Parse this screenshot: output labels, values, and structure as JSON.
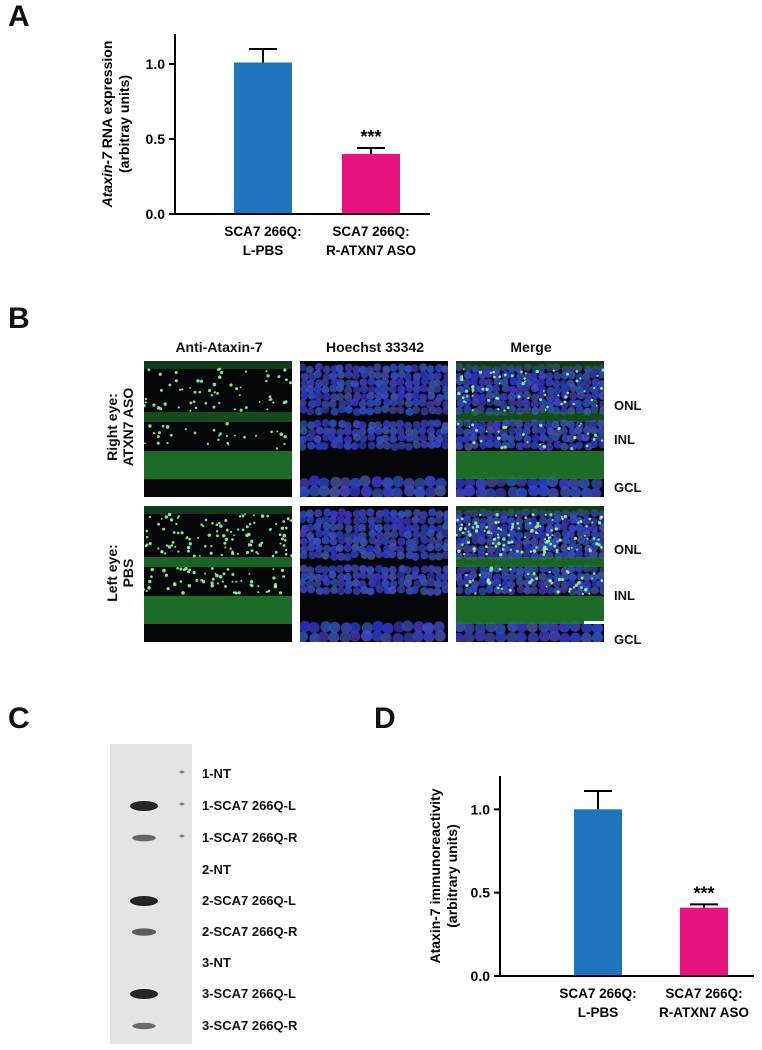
{
  "panels": {
    "a": "A",
    "b": "B",
    "c": "C",
    "d": "D"
  },
  "chart_data": [
    {
      "type": "bar",
      "panel": "A",
      "categories": [
        "SCA7 266Q:\nL-PBS",
        "SCA7 266Q:\nR-ATXN7 ASO"
      ],
      "values": [
        1.01,
        0.4
      ],
      "errors": [
        0.09,
        0.04
      ],
      "colors": [
        "#1f74bd",
        "#e6127f"
      ],
      "ylabel_italic": "Ataxin-7",
      "ylabel_rest": " RNA expression",
      "ylabel_line2": "(arbitray units)",
      "ylim": [
        0,
        1.2
      ],
      "yticks": [
        "0.0",
        "0.5",
        "1.0"
      ],
      "annotation": "***",
      "annotation_index": 1
    },
    {
      "type": "bar",
      "panel": "D",
      "categories": [
        "SCA7 266Q:\nL-PBS",
        "SCA7 266Q:\nR-ATXN7 ASO"
      ],
      "values": [
        1.0,
        0.41
      ],
      "errors": [
        0.11,
        0.02
      ],
      "colors": [
        "#1f74bd",
        "#e6127f"
      ],
      "ylabel_line1": "Ataxin-7 immunoreactivity",
      "ylabel_line2": "(arbitrary units)",
      "ylim": [
        0,
        1.2
      ],
      "yticks": [
        "0.0",
        "0.5",
        "1.0"
      ],
      "annotation": "***",
      "annotation_index": 1
    }
  ],
  "micrograph": {
    "columns": [
      "Anti-Ataxin-7",
      "Hoechst 33342",
      "Merge"
    ],
    "rows": [
      {
        "line1": "Right eye:",
        "line2": "ATXN7 ASO"
      },
      {
        "line1": "Left eye:",
        "line2": "PBS"
      }
    ],
    "layers": [
      "ONL",
      "INL",
      "GCL"
    ]
  },
  "blot": {
    "lanes": [
      "1-NT",
      "1-SCA7 266Q-L",
      "1-SCA7 266Q-R",
      "2-NT",
      "2-SCA7 266Q-L",
      "2-SCA7 266Q-R",
      "3-NT",
      "3-SCA7 266Q-L",
      "3-SCA7 266Q-R"
    ],
    "band_intensity": [
      0,
      1,
      0.45,
      0,
      1,
      0.55,
      0,
      1,
      0.4
    ]
  }
}
